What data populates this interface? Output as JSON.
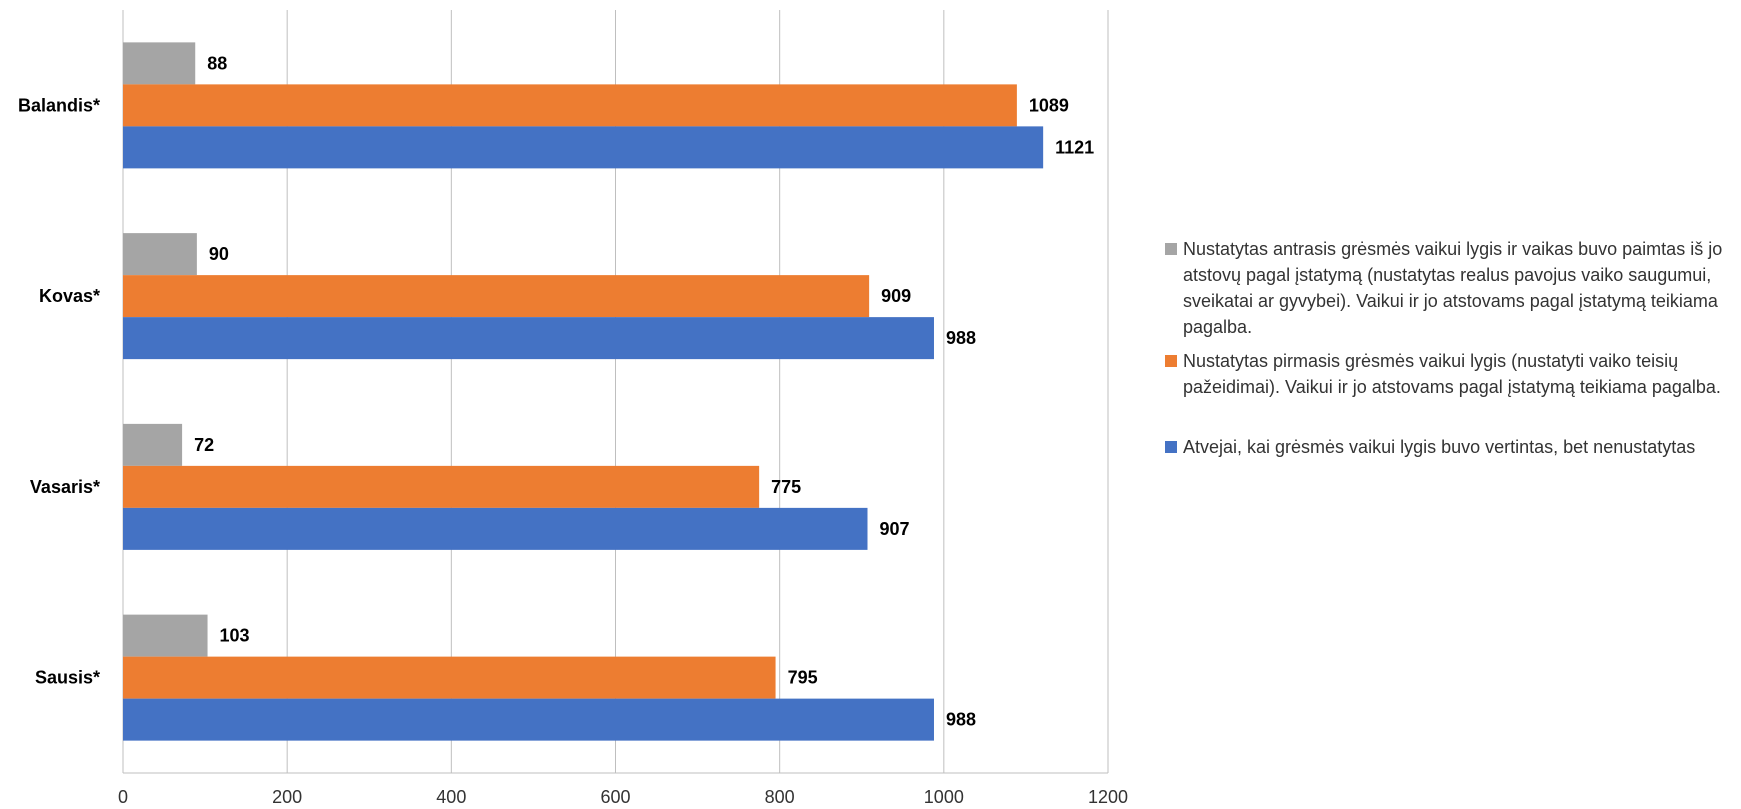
{
  "chart_data": {
    "type": "bar",
    "orientation": "horizontal",
    "categories": [
      "Balandis*",
      "Kovas*",
      "Vasaris*",
      "Sausis*"
    ],
    "series": [
      {
        "name": "Nustatytas antrasis grėsmės vaikui lygis ir vaikas buvo paimtas iš jo atstovų pagal įstatymą (nustatytas realus pavojus vaiko saugumui, sveikatai ar gyvybei). Vaikui ir jo atstovams pagal įstatymą teikiama pagalba.",
        "color": "#a5a5a5",
        "values": [
          88,
          90,
          72,
          103
        ]
      },
      {
        "name": "Nustatytas pirmasis grėsmės vaikui lygis (nustatyti vaiko teisių pažeidimai). Vaikui ir jo atstovams pagal įstatymą teikiama pagalba.",
        "color": "#ed7d31",
        "values": [
          1089,
          909,
          775,
          795
        ]
      },
      {
        "name": "Atvejai, kai grėsmės vaikui lygis buvo vertintas, bet nenustatytas",
        "color": "#4472c4",
        "values": [
          1121,
          988,
          907,
          988
        ]
      }
    ],
    "xlim": [
      0,
      1200
    ],
    "x_ticks": [
      "0",
      "200",
      "400",
      "600",
      "800",
      "1000",
      "1200"
    ],
    "grid": true,
    "legend_position": "right",
    "data_labels": true
  }
}
